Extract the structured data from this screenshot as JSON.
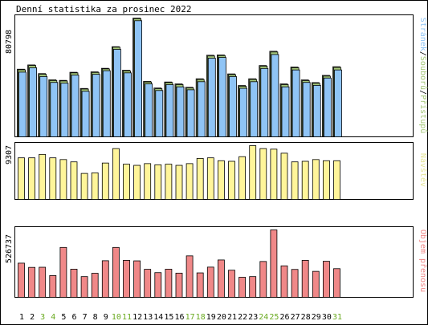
{
  "title": "Denní statistika za prosinec 2022",
  "colors": {
    "background": "#ffffff",
    "frame": "#000000",
    "grid": "#e0e0e0",
    "pages_bar": "#8fc4f5",
    "files_bar": "#a5c87a",
    "hits_bar": "#cfe3a8",
    "visits_bar": "#fff59a",
    "volume_bar": "#f08888",
    "pages_label": "#8fc4f5",
    "files_label": "#a5c87a",
    "hits_label": "#cfe3a8",
    "visits_label": "#e6e69a",
    "volume_label": "#f08888",
    "weekday_label": "#000000",
    "weekend_label": "#6aaa20"
  },
  "chart_data": [
    {
      "type": "bar",
      "name": "traffic",
      "ymax_label": "80798",
      "ymax": 80798,
      "legend": {
        "pages": "Stránek",
        "files": "Souborů",
        "hits": "Přístupů",
        "sep": "/"
      },
      "categories": [
        "1",
        "2",
        "3",
        "4",
        "5",
        "6",
        "7",
        "8",
        "9",
        "10",
        "11",
        "12",
        "13",
        "14",
        "15",
        "16",
        "17",
        "18",
        "19",
        "20",
        "21",
        "22",
        "23",
        "24",
        "25",
        "26",
        "27",
        "28",
        "29",
        "30",
        "31"
      ],
      "weekend_days": [
        3,
        4,
        10,
        11,
        17,
        18,
        24,
        25,
        31
      ],
      "series": [
        {
          "name": "Přístupů",
          "values": [
            46000,
            48900,
            43000,
            38800,
            38400,
            43900,
            32900,
            44200,
            46600,
            61300,
            45300,
            80798,
            37700,
            33200,
            37300,
            36000,
            33700,
            39500,
            55500,
            55700,
            42800,
            34900,
            39500,
            48500,
            58200,
            36000,
            47500,
            38700,
            36900,
            41800,
            47700
          ]
        },
        {
          "name": "Souborů",
          "values": [
            45600,
            48500,
            42500,
            38300,
            38000,
            43500,
            32500,
            43800,
            46200,
            61000,
            44900,
            80400,
            37300,
            32700,
            36900,
            35500,
            33200,
            39000,
            55000,
            55300,
            42300,
            34400,
            39000,
            48000,
            57700,
            35500,
            47000,
            38200,
            36400,
            41300,
            47200
          ]
        },
        {
          "name": "Stránek",
          "values": [
            44000,
            47000,
            41000,
            37000,
            36500,
            42000,
            31000,
            42500,
            45000,
            59500,
            43500,
            79000,
            36000,
            31500,
            35500,
            34000,
            32000,
            37500,
            53500,
            54000,
            41000,
            33000,
            37500,
            46500,
            56000,
            34000,
            45500,
            37000,
            35000,
            40000,
            45500
          ]
        }
      ]
    },
    {
      "type": "bar",
      "name": "visits",
      "ymax_label": "9307",
      "ymax": 9307,
      "legend": {
        "visits": "Návštěv"
      },
      "series": [
        {
          "name": "Návštěv",
          "values": [
            7200,
            7200,
            7800,
            7200,
            6900,
            6500,
            4500,
            4600,
            6300,
            8800,
            6100,
            5900,
            6200,
            6000,
            6100,
            5900,
            6200,
            7100,
            7200,
            6700,
            6600,
            7400,
            9307,
            8800,
            8700,
            8000,
            6500,
            6600,
            6900,
            6700,
            6700
          ]
        }
      ]
    },
    {
      "type": "bar",
      "name": "volume",
      "ymax_label": "526737",
      "ymax": 526737,
      "legend": {
        "volume": "Objem přenosu"
      },
      "series": [
        {
          "name": "Objem přenosu",
          "values": [
            267000,
            234000,
            235000,
            170000,
            390000,
            220000,
            162000,
            188000,
            286000,
            390000,
            289000,
            285000,
            219000,
            193000,
            220000,
            189000,
            324000,
            191000,
            236000,
            292000,
            212000,
            157000,
            162000,
            280000,
            526737,
            246000,
            218000,
            289000,
            203000,
            282000,
            224000
          ]
        }
      ]
    }
  ]
}
